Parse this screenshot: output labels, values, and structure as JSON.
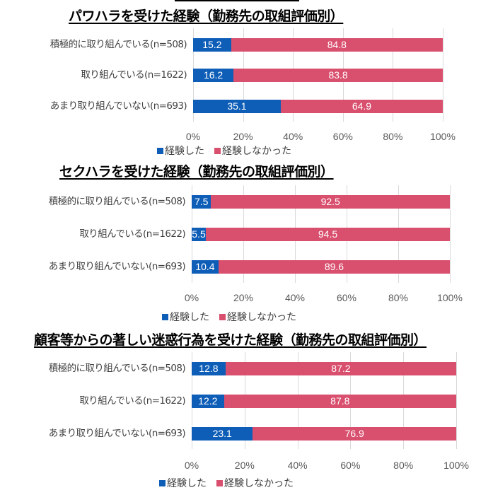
{
  "colors": {
    "experienced": "#0E5EB8",
    "not_experienced": "#D94F6E",
    "grid": "#D9D9D9"
  },
  "chart_data": [
    {
      "type": "bar",
      "orientation": "horizontal",
      "stacked": true,
      "title": "パワハラを受けた経験（勤務先の取組評価別）",
      "categories": [
        "積極的に取り組んでいる(n=508)",
        "取り組んでいる(n=1622)",
        "あまり取り組んでいない(n=693)"
      ],
      "series": [
        {
          "name": "経験した",
          "values": [
            15.2,
            16.2,
            35.1
          ]
        },
        {
          "name": "経験しなかった",
          "values": [
            84.8,
            83.8,
            64.9
          ]
        }
      ],
      "xlim": [
        0,
        100
      ],
      "xticks": [
        "0%",
        "20%",
        "40%",
        "60%",
        "80%",
        "100%"
      ],
      "grid": true,
      "legend": "bottom"
    },
    {
      "type": "bar",
      "orientation": "horizontal",
      "stacked": true,
      "title": "セクハラを受けた経験（勤務先の取組評価別）",
      "categories": [
        "積極的に取り組んでいる(n=508)",
        "取り組んでいる(n=1622)",
        "あまり取り組んでいない(n=693)"
      ],
      "series": [
        {
          "name": "経験した",
          "values": [
            7.5,
            5.5,
            10.4
          ]
        },
        {
          "name": "経験しなかった",
          "values": [
            92.5,
            94.5,
            89.6
          ]
        }
      ],
      "xlim": [
        0,
        100
      ],
      "xticks": [
        "0%",
        "20%",
        "40%",
        "60%",
        "80%",
        "100%"
      ],
      "grid": true,
      "legend": "bottom"
    },
    {
      "type": "bar",
      "orientation": "horizontal",
      "stacked": true,
      "title": "顧客等からの著しい迷惑行為を受けた経験（勤務先の取組評価別）",
      "categories": [
        "積極的に取り組んでいる(n=508)",
        "取り組んでいる(n=1622)",
        "あまり取り組んでいない(n=693)"
      ],
      "series": [
        {
          "name": "経験した",
          "values": [
            12.8,
            12.2,
            23.1
          ]
        },
        {
          "name": "経験しなかった",
          "values": [
            87.2,
            87.8,
            76.9
          ]
        }
      ],
      "xlim": [
        0,
        100
      ],
      "xticks": [
        "0%",
        "20%",
        "40%",
        "60%",
        "80%",
        "100%"
      ],
      "grid": true,
      "legend": "bottom"
    }
  ]
}
